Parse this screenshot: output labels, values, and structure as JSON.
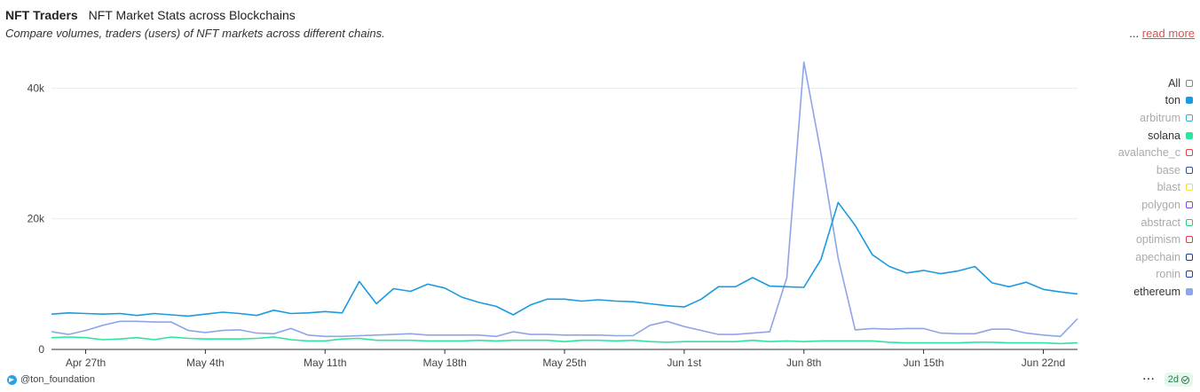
{
  "header": {
    "title": "NFT Traders",
    "subtitle": "NFT Market Stats across Blockchains",
    "description": "Compare volumes, traders (users) of NFT markets across different chains.",
    "ellipsis": "...",
    "read_more": "read more"
  },
  "legend": [
    {
      "label": "All",
      "color": "#888888",
      "active": true
    },
    {
      "label": "ton",
      "color": "#1a9be0",
      "active": true,
      "filled": true
    },
    {
      "label": "arbitrum",
      "color": "#29b6d8",
      "active": false
    },
    {
      "label": "solana",
      "color": "#2ee59d",
      "active": true,
      "filled": true
    },
    {
      "label": "avalanche_c",
      "color": "#e84142",
      "active": false
    },
    {
      "label": "base",
      "color": "#2b4fa8",
      "active": false
    },
    {
      "label": "blast",
      "color": "#f0e130",
      "active": false
    },
    {
      "label": "polygon",
      "color": "#8247e5",
      "active": false
    },
    {
      "label": "abstract",
      "color": "#2ecc71",
      "active": false
    },
    {
      "label": "optimism",
      "color": "#e63946",
      "active": false
    },
    {
      "label": "apechain",
      "color": "#1e3a8a",
      "active": false
    },
    {
      "label": "ronin",
      "color": "#1e40af",
      "active": false
    },
    {
      "label": "ethereum",
      "color": "#8ea5e8",
      "active": true,
      "filled": true
    }
  ],
  "footer": {
    "handle": "@ton_foundation",
    "more": "···",
    "refresh": "2d"
  },
  "chart_data": {
    "type": "line",
    "ylim": [
      0,
      44000
    ],
    "yticks": [
      0,
      20000,
      40000
    ],
    "ytick_labels": [
      "0",
      "20k",
      "40k"
    ],
    "xtick_labels": [
      "Apr 27th",
      "May 4th",
      "May 11th",
      "May 18th",
      "May 25th",
      "Jun 1st",
      "Jun 8th",
      "Jun 15th",
      "Jun 22nd"
    ],
    "xtick_day_index": [
      2,
      9,
      16,
      23,
      30,
      37,
      44,
      51,
      58
    ],
    "x_days": 59,
    "series": [
      {
        "name": "ethereum",
        "color": "#8ea5e8",
        "values": [
          2700,
          2300,
          2900,
          3700,
          4300,
          4300,
          4200,
          4200,
          2900,
          2600,
          2900,
          3000,
          2500,
          2400,
          3200,
          2200,
          2000,
          2000,
          2100,
          2200,
          2300,
          2400,
          2200,
          2200,
          2200,
          2200,
          2000,
          2700,
          2300,
          2300,
          2200,
          2200,
          2200,
          2100,
          2100,
          3700,
          4300,
          3500,
          2900,
          2300,
          2300,
          2500,
          2700,
          11000,
          44000,
          30000,
          14000,
          3000,
          3200,
          3100,
          3200,
          3200,
          2500,
          2400,
          2400,
          3100,
          3100,
          2500,
          2200,
          2000,
          4700
        ]
      },
      {
        "name": "ton",
        "color": "#1a9be0",
        "values": [
          5400,
          5600,
          5500,
          5400,
          5500,
          5200,
          5500,
          5300,
          5100,
          5400,
          5700,
          5500,
          5200,
          6000,
          5500,
          5600,
          5800,
          5600,
          10400,
          7000,
          9300,
          8900,
          10000,
          9400,
          8000,
          7200,
          6600,
          5300,
          6800,
          7700,
          7700,
          7400,
          7600,
          7400,
          7300,
          7000,
          6700,
          6500,
          7700,
          9600,
          9600,
          11000,
          9700,
          9600,
          9500,
          13800,
          22500,
          19000,
          14500,
          12700,
          11700,
          12100,
          11600,
          12000,
          12700,
          10200,
          9600,
          10300,
          9200,
          8800,
          8500
        ]
      },
      {
        "name": "solana",
        "color": "#2ee59d",
        "values": [
          1800,
          1900,
          1800,
          1500,
          1600,
          1800,
          1500,
          1900,
          1700,
          1600,
          1600,
          1600,
          1700,
          1900,
          1500,
          1300,
          1300,
          1600,
          1700,
          1400,
          1400,
          1400,
          1300,
          1300,
          1300,
          1400,
          1300,
          1400,
          1400,
          1400,
          1200,
          1400,
          1400,
          1300,
          1400,
          1200,
          1100,
          1200,
          1200,
          1200,
          1200,
          1400,
          1200,
          1300,
          1200,
          1300,
          1300,
          1300,
          1300,
          1100,
          1000,
          1000,
          1000,
          1000,
          1100,
          1100,
          1000,
          1000,
          1000,
          900,
          1000
        ]
      }
    ]
  }
}
